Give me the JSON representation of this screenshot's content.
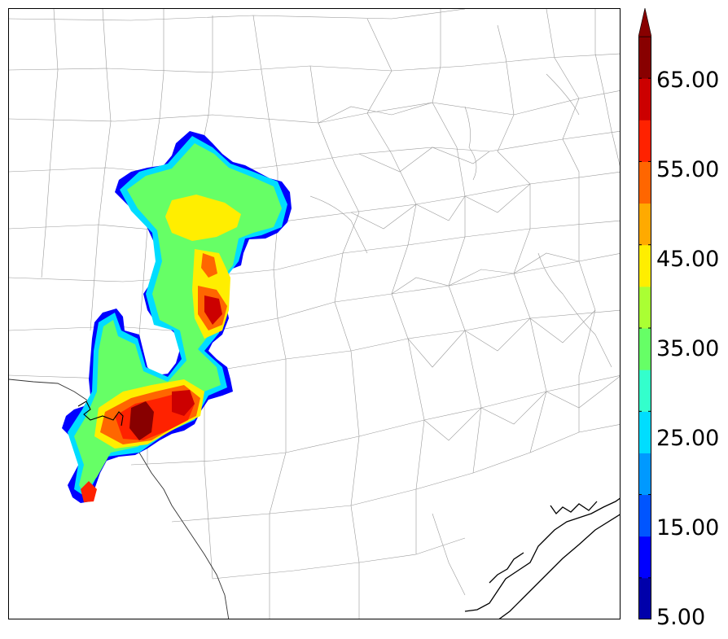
{
  "colorbar": {
    "labels": [
      "65.00",
      "55.00",
      "45.00",
      "35.00",
      "25.00",
      "15.00",
      "5.00"
    ],
    "colors": [
      "#0000aa",
      "#0000ff",
      "#0055ff",
      "#0099ff",
      "#00ddff",
      "#33ffcc",
      "#66ff66",
      "#aaff33",
      "#ffee00",
      "#ffaa00",
      "#ff6600",
      "#ff2200",
      "#cc0000",
      "#880000"
    ]
  },
  "map": {
    "radar_field": "reflectivity-contours",
    "county_line_color": "#9a9a9a",
    "state_line_color": "#333333",
    "coast_line_color": "#000000"
  }
}
